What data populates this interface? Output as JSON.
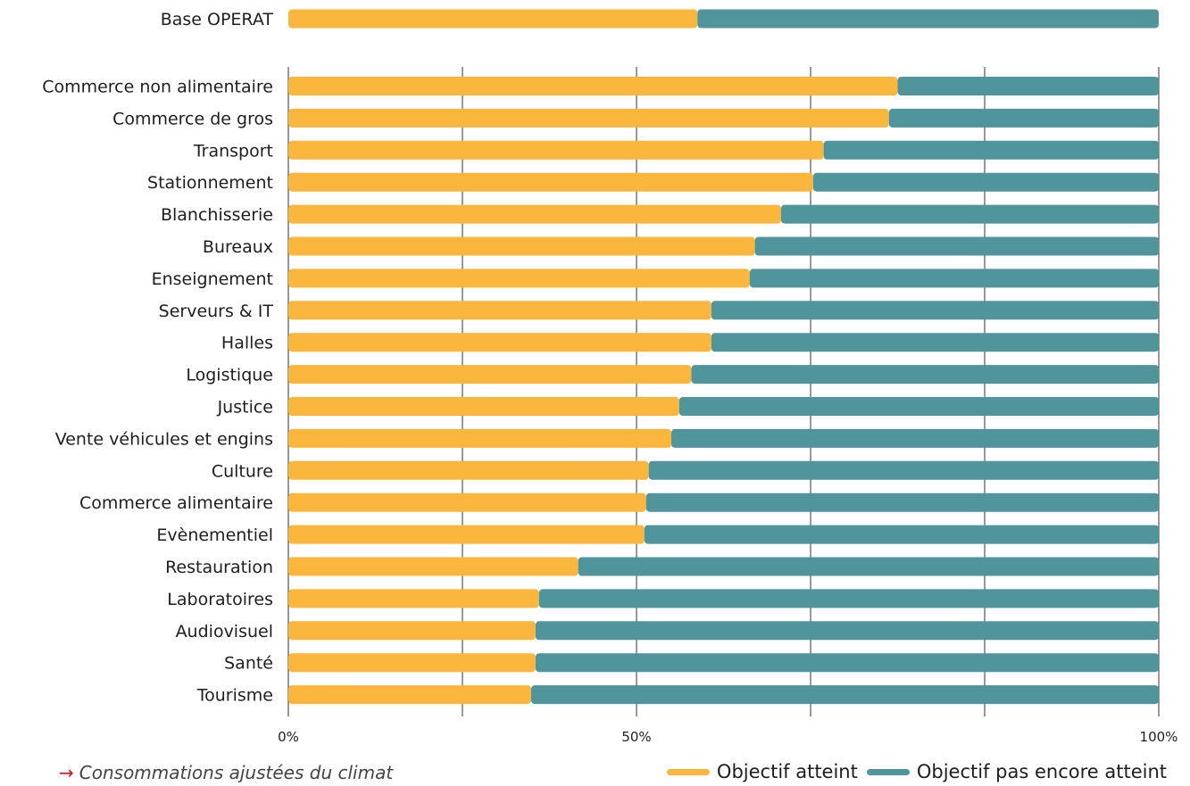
{
  "chart_data": {
    "type": "bar",
    "stacked": true,
    "orientation": "horizontal",
    "grid": true,
    "xlim": [
      0,
      100
    ],
    "x_ticks": [
      "0%",
      "",
      "50%",
      "",
      "",
      "100%"
    ],
    "total": {
      "category": "Base OPERAT",
      "values": [
        47,
        53
      ]
    },
    "categories": [
      "Commerce non alimentaire",
      "Commerce de gros",
      "Transport",
      "Stationnement",
      "Blanchisserie",
      "Bureaux",
      "Enseignement",
      "Serveurs & IT",
      "Halles",
      "Logistique",
      "Justice",
      "Vente véhicules et engins",
      "Culture",
      "Commerce alimentaire",
      "Evènementiel",
      "Restauration",
      "Laboratoires",
      "Audiovisuel",
      "Santé",
      "Tourisme"
    ],
    "series": [
      {
        "name": "Objectif atteint",
        "color": "#fbb63d",
        "values": [
          70,
          69,
          61.5,
          60.3,
          56.6,
          53.6,
          53,
          48.6,
          48.6,
          46.3,
          44.9,
          44,
          41.4,
          41.1,
          40.9,
          33.3,
          28.8,
          28.4,
          28.4,
          27.9
        ]
      },
      {
        "name": "Objectif pas encore atteint",
        "color": "#50949c",
        "values": [
          30,
          31,
          38.5,
          39.7,
          43.4,
          46.4,
          47,
          51.4,
          51.4,
          53.7,
          55.1,
          56,
          58.6,
          58.9,
          59.1,
          66.7,
          71.2,
          71.6,
          71.6,
          72.1
        ]
      }
    ]
  },
  "footnote": {
    "arrow": "→",
    "text": "Consommations ajustées du climat"
  },
  "legend": {
    "items": [
      "Objectif atteint",
      "Objectif pas encore atteint"
    ]
  }
}
